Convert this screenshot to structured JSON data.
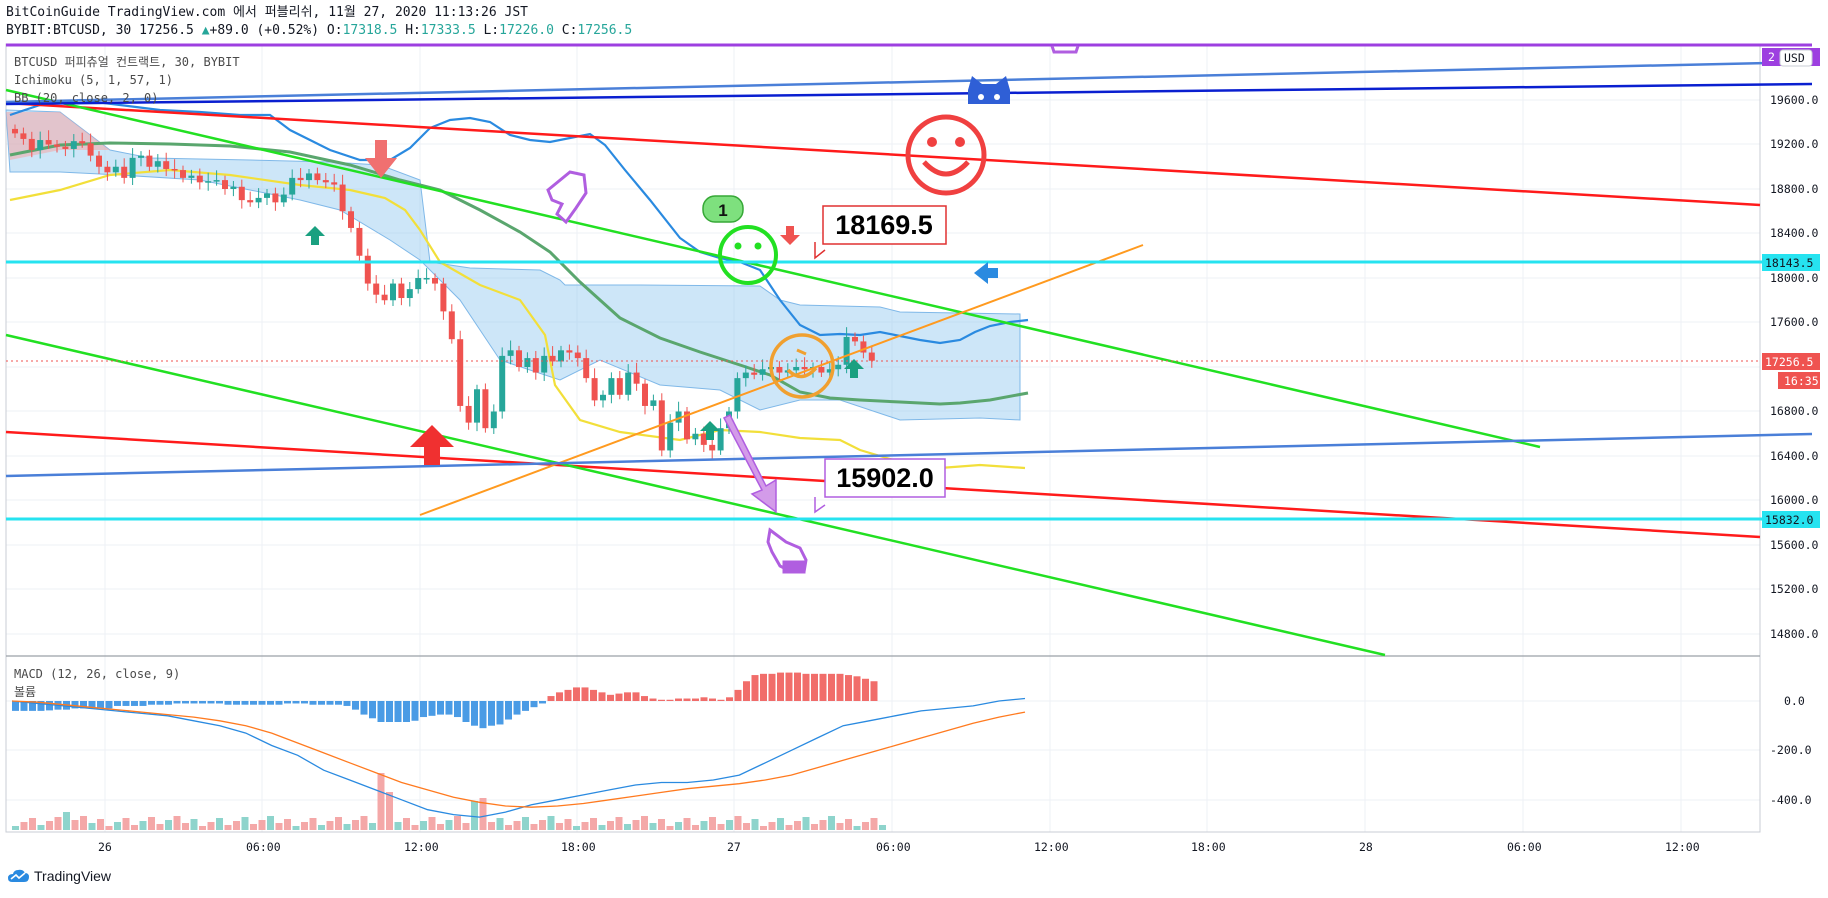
{
  "header": {
    "publish_line": "BitCoinGuide TradingView.com 에서 퍼블리쉬, 11월 27, 2020 11:13:26 JST",
    "symbol": "BYBIT:BTCUSD, 30",
    "price": "17256.5",
    "change_arrow": "▲",
    "change": "+89.0 (+0.52%)",
    "o_label": "O:",
    "o_value": "17318.5",
    "h_label": "H:",
    "h_value": "17333.5",
    "l_label": "L:",
    "l_value": "17226.0",
    "c_label": "C:",
    "c_value": "17256.5"
  },
  "legend": {
    "title": "BTCUSD 퍼피츄얼 컨트랙트, 30, BYBIT",
    "ichimoku": "Ichimoku (5, 1, 57, 1)",
    "bb": "BB (20, close, 2, 0)",
    "macd": "MACD (12, 26, close, 9)",
    "volume": "볼륨"
  },
  "axis": {
    "currency": "USD",
    "price_ticks": [
      "19600.0",
      "19200.0",
      "18800.0",
      "18400.0",
      "18000.0",
      "17600.0",
      "16800.0",
      "16400.0",
      "16000.0",
      "15600.0",
      "15200.0",
      "14800.0"
    ],
    "macd_ticks": [
      "0.0",
      "-200.0",
      "-400.0"
    ],
    "time_ticks": [
      "26",
      "06:00",
      "12:00",
      "18:00",
      "27",
      "06:00",
      "12:00",
      "18:00",
      "28",
      "06:00",
      "12:00"
    ],
    "tag_top": "2",
    "tag_18143": "18143.5",
    "tag_price": "17256.5",
    "tag_countdown": "16:35",
    "tag_15832": "15832.0"
  },
  "annotations": {
    "high_label": "18169.5",
    "low_label": "15902.0",
    "badge": "1"
  },
  "brand": {
    "name": "TradingView"
  },
  "colors": {
    "up": "#26a69a",
    "down": "#ef5350",
    "cloud": "#90c8f0",
    "bb_mid": "#e8d22a",
    "blue_line": "#2a8ae0",
    "green_ma": "#5aa66e",
    "red_trend": "#ff1b1b",
    "green_trend": "#22e022",
    "orange_trend": "#ff9a1f",
    "cyan_level": "#26e3f0",
    "navy_line": "#0a1fd0",
    "steel_line": "#4a7fd8",
    "purple": "#b05ee0"
  },
  "chart_data": [
    {
      "type": "candlestick",
      "title": "BTCUSD 퍼피츄얼 컨트랙트, 30, BYBIT",
      "ylim": [
        14600,
        19900
      ],
      "x_range": [
        "26",
        "12:00"
      ],
      "candles_close": [
        19300,
        19250,
        19150,
        19240,
        19200,
        19180,
        19160,
        19230,
        19210,
        19100,
        19000,
        18950,
        19000,
        18900,
        19080,
        19100,
        19000,
        19050,
        18980,
        18970,
        18900,
        18920,
        18860,
        18870,
        18880,
        18800,
        18820,
        18700,
        18680,
        18720,
        18760,
        18680,
        18750,
        18900,
        18880,
        18940,
        18880,
        18860,
        18840,
        18600,
        18450,
        18200,
        17950,
        17850,
        17800,
        17950,
        17820,
        17900,
        18000,
        18000,
        17950,
        17700,
        17450,
        16850,
        16700,
        17000,
        16650,
        16800,
        17300,
        17350,
        17200,
        17280,
        17150,
        17300,
        17250,
        17350,
        17330,
        17280,
        17100,
        16900,
        16950,
        17100,
        16950,
        17150,
        17050,
        16850,
        16900,
        16450,
        16700,
        16800,
        16550,
        16600,
        16500,
        16450,
        16650,
        16800,
        17100,
        17150,
        17130,
        17180,
        17200,
        17150,
        17170,
        17200,
        17180,
        17200,
        17150,
        17180,
        17220,
        17470,
        17430,
        17330,
        17256.5
      ],
      "last_price": 17256.5,
      "levels": [
        18143.5,
        15832.0
      ],
      "labels": [
        18169.5,
        15902.0
      ]
    },
    {
      "type": "bar",
      "title": "MACD (12, 26, close, 9)",
      "ylim": [
        -560,
        160
      ],
      "histogram": [
        -40,
        -40,
        -40,
        -40,
        -38,
        -35,
        -35,
        -30,
        -30,
        -30,
        -30,
        -30,
        -20,
        -20,
        -20,
        -20,
        -15,
        -15,
        -15,
        -10,
        -10,
        -10,
        -10,
        -10,
        -10,
        -15,
        -15,
        -15,
        -15,
        -15,
        -15,
        -15,
        -10,
        -10,
        -10,
        -15,
        -15,
        -15,
        -15,
        -20,
        -35,
        -55,
        -70,
        -85,
        -85,
        -85,
        -85,
        -80,
        -65,
        -60,
        -55,
        -55,
        -65,
        -85,
        -100,
        -110,
        -100,
        -95,
        -75,
        -55,
        -40,
        -25,
        -10,
        20,
        35,
        45,
        55,
        55,
        45,
        35,
        25,
        30,
        35,
        35,
        20,
        10,
        5,
        5,
        10,
        10,
        10,
        15,
        10,
        5,
        15,
        45,
        80,
        105,
        110,
        110,
        115,
        115,
        115,
        110,
        110,
        110,
        110,
        110,
        105,
        100,
        90,
        80
      ],
      "macd_line": [
        0,
        -10,
        -20,
        -30,
        -40,
        -50,
        -60,
        -80,
        -100,
        -130,
        -180,
        -220,
        -280,
        -320,
        -360,
        -400,
        -440,
        -460,
        -470,
        -450,
        -420,
        -400,
        -380,
        -360,
        -340,
        -330,
        -330,
        -320,
        -300,
        -250,
        -200,
        -150,
        -100,
        -80,
        -60,
        -40,
        -30,
        -20,
        0,
        10
      ],
      "signal_line": [
        0,
        -5,
        -15,
        -25,
        -35,
        -45,
        -55,
        -65,
        -80,
        -100,
        -130,
        -170,
        -210,
        -250,
        -290,
        -330,
        -360,
        -390,
        -410,
        -425,
        -430,
        -425,
        -415,
        -400,
        -385,
        -370,
        -355,
        -345,
        -335,
        -320,
        -300,
        -270,
        -240,
        -210,
        -180,
        -150,
        -120,
        -90,
        -65,
        -45
      ]
    }
  ]
}
